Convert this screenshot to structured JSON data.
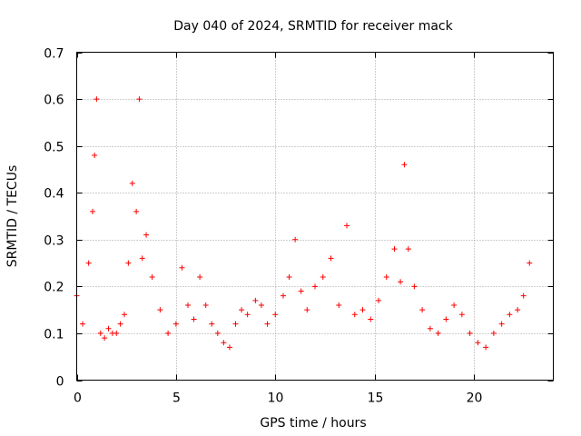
{
  "chart_data": {
    "type": "scatter",
    "title": "Day 040 of 2024, SRMTID for receiver mack",
    "xlabel": "GPS time / hours",
    "ylabel": "SRMTID / TECUs",
    "xlim": [
      0,
      24
    ],
    "ylim": [
      0,
      0.7
    ],
    "x_ticks": [
      0,
      5,
      10,
      15,
      20
    ],
    "x_tick_labels": [
      "0",
      "5",
      "10",
      "15",
      "20"
    ],
    "y_ticks": [
      0,
      0.1,
      0.2,
      0.3,
      0.4,
      0.5,
      0.6,
      0.7
    ],
    "y_tick_labels": [
      "0",
      "0.1",
      "0.2",
      "0.3",
      "0.4",
      "0.5",
      "0.6",
      "0.7"
    ],
    "grid": true,
    "marker": "+",
    "color": "#ff0000",
    "x": [
      0.0,
      0.3,
      0.6,
      0.8,
      0.9,
      1.0,
      1.2,
      1.4,
      1.6,
      1.8,
      2.0,
      2.2,
      2.4,
      2.6,
      2.8,
      3.0,
      3.15,
      3.3,
      3.5,
      3.8,
      4.2,
      4.6,
      5.0,
      5.3,
      5.6,
      5.9,
      6.2,
      6.5,
      6.8,
      7.1,
      7.4,
      7.7,
      8.0,
      8.3,
      8.6,
      9.0,
      9.3,
      9.6,
      10.0,
      10.4,
      10.7,
      11.0,
      11.3,
      11.6,
      12.0,
      12.4,
      12.8,
      13.2,
      13.6,
      14.0,
      14.4,
      14.8,
      15.2,
      15.6,
      16.0,
      16.3,
      16.5,
      16.7,
      17.0,
      17.4,
      17.8,
      18.2,
      18.6,
      19.0,
      19.4,
      19.8,
      20.2,
      20.6,
      21.0,
      21.4,
      21.8,
      22.2,
      22.5,
      22.8
    ],
    "y": [
      0.18,
      0.12,
      0.25,
      0.36,
      0.48,
      0.6,
      0.1,
      0.09,
      0.11,
      0.1,
      0.1,
      0.12,
      0.14,
      0.25,
      0.42,
      0.36,
      0.6,
      0.26,
      0.31,
      0.22,
      0.15,
      0.1,
      0.12,
      0.24,
      0.16,
      0.13,
      0.22,
      0.16,
      0.12,
      0.1,
      0.08,
      0.07,
      0.12,
      0.15,
      0.14,
      0.17,
      0.16,
      0.12,
      0.14,
      0.18,
      0.22,
      0.3,
      0.19,
      0.15,
      0.2,
      0.22,
      0.26,
      0.16,
      0.33,
      0.14,
      0.15,
      0.13,
      0.17,
      0.22,
      0.28,
      0.21,
      0.46,
      0.28,
      0.2,
      0.15,
      0.11,
      0.1,
      0.13,
      0.16,
      0.14,
      0.1,
      0.08,
      0.07,
      0.1,
      0.12,
      0.14,
      0.15,
      0.18,
      0.25
    ]
  }
}
